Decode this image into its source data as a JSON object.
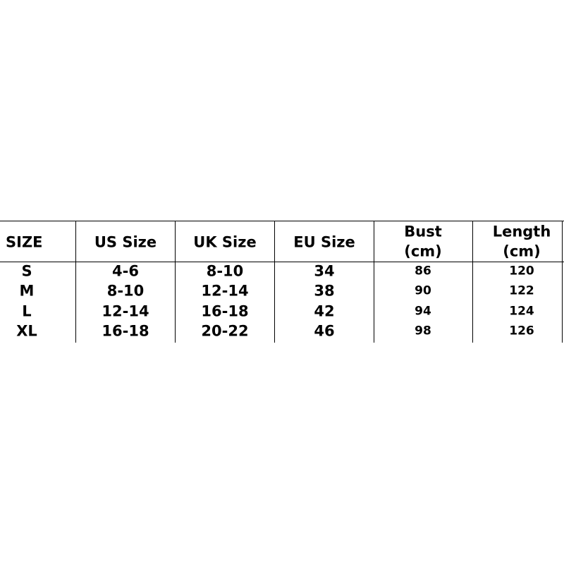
{
  "table": {
    "header": [
      [
        "SIZE"
      ],
      [
        "US Size"
      ],
      [
        "UK Size"
      ],
      [
        "EU Size"
      ],
      [
        "Bust",
        "(cm)"
      ],
      [
        "Length",
        "(cm)"
      ]
    ],
    "rows": [
      [
        "S",
        "4-6",
        "8-10",
        "34",
        "86",
        "120"
      ],
      [
        "M",
        "8-10",
        "12-14",
        "38",
        "90",
        "122"
      ],
      [
        "L",
        "12-14",
        "16-18",
        "42",
        "94",
        "124"
      ],
      [
        "XL",
        "16-18",
        "20-22",
        "46",
        "98",
        "126"
      ]
    ]
  }
}
